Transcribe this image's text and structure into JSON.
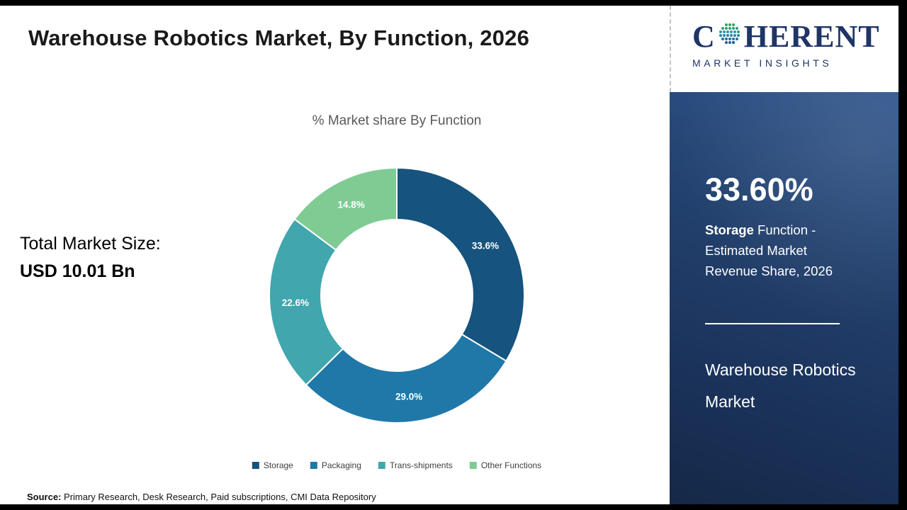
{
  "header": {
    "title": "Warehouse Robotics Market, By Function, 2026"
  },
  "logo": {
    "name_first_letter": "C",
    "name_rest": "HERENT",
    "subtitle": "MARKET INSIGHTS"
  },
  "left_stats": {
    "label": "Total Market Size:",
    "value": "USD 10.01 Bn"
  },
  "chart_data": {
    "type": "pie",
    "donut": true,
    "title": "% Market share By Function",
    "categories": [
      "Storage",
      "Packaging",
      "Trans-shipments",
      "Other Functions"
    ],
    "values": [
      33.6,
      29.0,
      22.6,
      14.8
    ],
    "data_labels": [
      "33.6%",
      "29.0%",
      "22.6%",
      "14.8%"
    ],
    "colors": [
      "#16537e",
      "#1f78a8",
      "#41a6ae",
      "#7fcb93"
    ],
    "legend_position": "bottom",
    "annotation": "Total Market Size: USD 10.01 Bn"
  },
  "sidebar": {
    "stat_value": "33.60%",
    "stat_desc_bold": "Storage",
    "stat_desc_rest": " Function - Estimated Market Revenue Share, 2026",
    "title": "Warehouse Robotics Market"
  },
  "footer": {
    "source_label": "Source:",
    "source_text": " Primary Research, Desk Research, Paid subscriptions, CMI Data Repository"
  }
}
